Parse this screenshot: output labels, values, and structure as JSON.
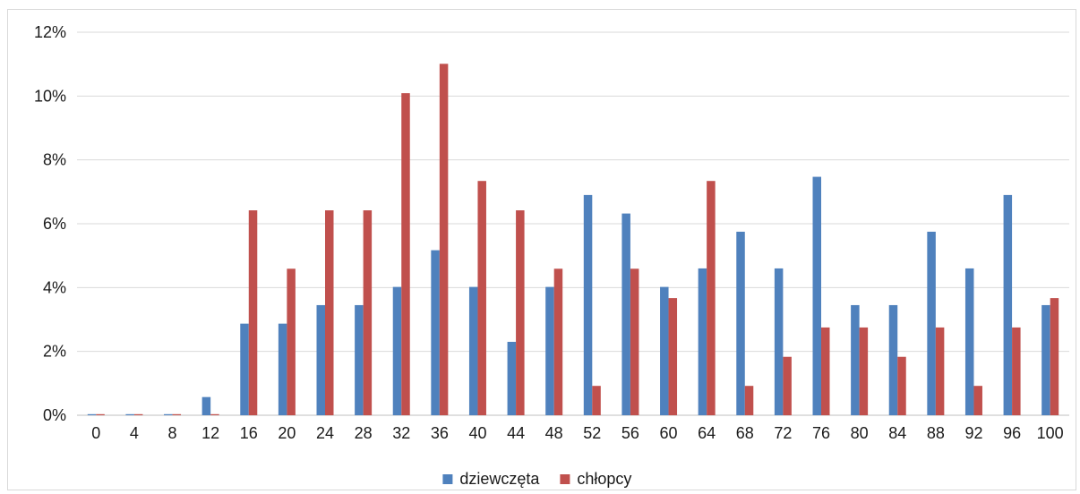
{
  "chart_data": {
    "type": "bar",
    "title": "",
    "xlabel": "",
    "ylabel": "",
    "categories": [
      "0",
      "4",
      "8",
      "12",
      "16",
      "20",
      "24",
      "28",
      "32",
      "36",
      "40",
      "44",
      "48",
      "52",
      "56",
      "60",
      "64",
      "68",
      "72",
      "76",
      "80",
      "84",
      "88",
      "92",
      "96",
      "100"
    ],
    "series": [
      {
        "name": "dziewczęta",
        "color": "#4f81bd",
        "values": [
          0.0,
          0.0,
          0.0,
          0.57,
          2.87,
          2.87,
          3.45,
          3.45,
          4.02,
          5.17,
          4.02,
          2.3,
          4.02,
          6.9,
          6.32,
          4.02,
          4.6,
          5.75,
          4.6,
          7.47,
          3.45,
          3.45,
          5.75,
          4.6,
          6.9,
          3.45
        ]
      },
      {
        "name": "chłopcy",
        "color": "#c0504d",
        "values": [
          0.0,
          0.0,
          0.0,
          0.0,
          6.42,
          4.59,
          6.42,
          6.42,
          10.09,
          11.01,
          7.34,
          6.42,
          4.59,
          0.92,
          4.59,
          3.67,
          7.34,
          0.92,
          1.83,
          2.75,
          2.75,
          1.83,
          2.75,
          0.92,
          2.75,
          3.67
        ]
      }
    ],
    "ylim": [
      0,
      12
    ],
    "yticks": [
      "0%",
      "2%",
      "4%",
      "6%",
      "8%",
      "10%",
      "12%"
    ],
    "grid": true,
    "legend": "bottom"
  }
}
